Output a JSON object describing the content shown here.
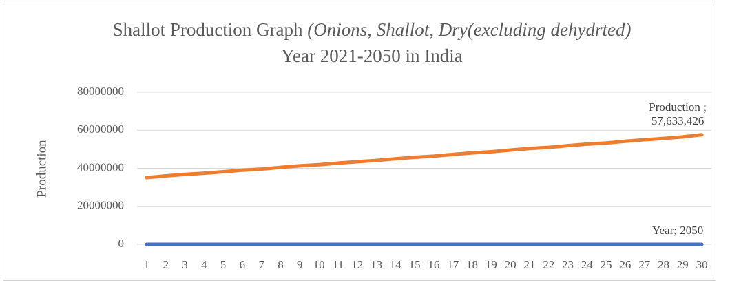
{
  "chart_data": {
    "type": "line",
    "title": "Shallot Production Graph",
    "title_italic": "(Onions, Shallot, Dry(excluding dehydrted)",
    "title_suffix": "Year 2021-2050  in India",
    "y_label": "Production",
    "categories": [
      "1",
      "2",
      "3",
      "4",
      "5",
      "6",
      "7",
      "8",
      "9",
      "10",
      "11",
      "12",
      "13",
      "14",
      "15",
      "16",
      "17",
      "18",
      "19",
      "20",
      "21",
      "22",
      "23",
      "24",
      "25",
      "26",
      "27",
      "28",
      "29",
      "30"
    ],
    "series": [
      {
        "name": "Year",
        "color": "#4472c4",
        "values": [
          2021,
          2022,
          2023,
          2024,
          2025,
          2026,
          2027,
          2028,
          2029,
          2030,
          2031,
          2032,
          2033,
          2034,
          2035,
          2036,
          2037,
          2038,
          2039,
          2040,
          2041,
          2042,
          2043,
          2044,
          2045,
          2046,
          2047,
          2048,
          2049,
          2050
        ],
        "value_labels": [
          null,
          null,
          null,
          null,
          null,
          null,
          null,
          null,
          null,
          null,
          null,
          null,
          null,
          null,
          null,
          null,
          null,
          null,
          null,
          null,
          null,
          null,
          null,
          null,
          null,
          null,
          null,
          null,
          null,
          "Year; 2050"
        ]
      },
      {
        "name": "Production",
        "color": "#ed7d31",
        "values": [
          35100000,
          36000000,
          36800000,
          37400000,
          38200000,
          39000000,
          39600000,
          40500000,
          41300000,
          41900000,
          42700000,
          43500000,
          44100000,
          45000000,
          45800000,
          46400000,
          47300000,
          48100000,
          48700000,
          49600000,
          50400000,
          51000000,
          51900000,
          52700000,
          53300000,
          54200000,
          55000000,
          55700000,
          56500000,
          57633426
        ],
        "value_labels": [
          null,
          null,
          null,
          null,
          null,
          null,
          null,
          null,
          null,
          null,
          null,
          null,
          null,
          null,
          null,
          null,
          null,
          null,
          null,
          null,
          null,
          null,
          null,
          null,
          null,
          null,
          null,
          null,
          null,
          "Production ; 57,633,426"
        ]
      }
    ],
    "ylim": [
      0,
      80000000
    ],
    "yticks": [
      0,
      20000000,
      40000000,
      60000000,
      80000000
    ],
    "grid": true
  }
}
